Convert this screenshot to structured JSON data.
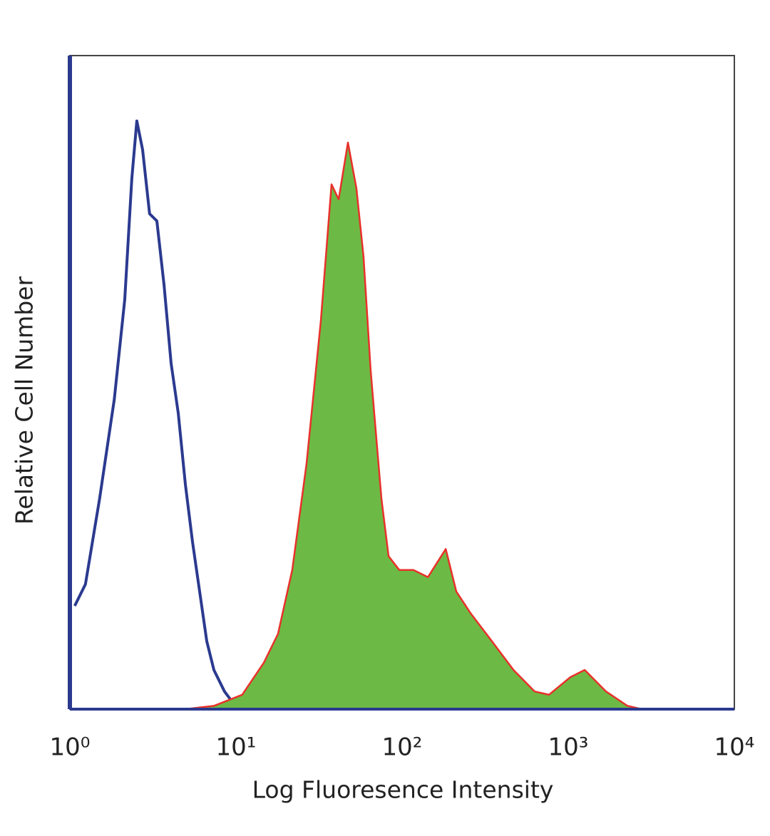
{
  "chart_data": {
    "type": "histogram-overlay",
    "x_label": "Log Fluoresence Intensity",
    "y_label": "Relative Cell Number",
    "x_log": true,
    "xlim": [
      1,
      10000
    ],
    "xticks": [
      {
        "value": 1,
        "label": "10⁰"
      },
      {
        "value": 10,
        "label": "10¹"
      },
      {
        "value": 100,
        "label": "10²"
      },
      {
        "value": 1000,
        "label": "10³"
      },
      {
        "value": 10000,
        "label": "10⁴"
      }
    ],
    "ylim": [
      0,
      100
    ],
    "series": [
      {
        "color": "#2b3a8f",
        "filled": false,
        "x": [
          1.07,
          1.24,
          1.51,
          1.85,
          2.14,
          2.36,
          2.53,
          2.74,
          3.02,
          3.34,
          3.69,
          4.07,
          4.49,
          4.96,
          5.47,
          6.04,
          6.67,
          7.36,
          8.53,
          9.9,
          11.5
        ],
        "values": [
          15.8,
          19.1,
          32.2,
          47.4,
          62.7,
          81.2,
          90.0,
          85.6,
          75.8,
          74.7,
          64.9,
          52.9,
          45.3,
          34.4,
          25.6,
          18.0,
          10.4,
          6.0,
          2.7,
          0.5,
          0
        ]
      },
      {
        "color": "#e8312a",
        "fill": "#6cba45",
        "filled": true,
        "x": [
          4.96,
          7.36,
          10.9,
          14.7,
          17.9,
          21.8,
          26.6,
          32.4,
          37.6,
          41.5,
          47.2,
          53.1,
          58.6,
          64.7,
          75.1,
          82.9,
          96.1,
          117,
          143,
          183,
          212,
          258,
          347,
          468,
          628,
          766,
          1030,
          1256,
          1689,
          2271,
          2767
        ],
        "values": [
          0,
          0.5,
          2.2,
          7.1,
          11.5,
          21.3,
          37.6,
          59.4,
          80.3,
          78.0,
          86.7,
          79.7,
          69.2,
          51.8,
          32.2,
          23.4,
          21.3,
          21.3,
          20.2,
          24.5,
          18.0,
          14.7,
          10.4,
          6.0,
          2.7,
          2.2,
          4.9,
          6.0,
          2.7,
          0.5,
          0
        ]
      }
    ]
  }
}
